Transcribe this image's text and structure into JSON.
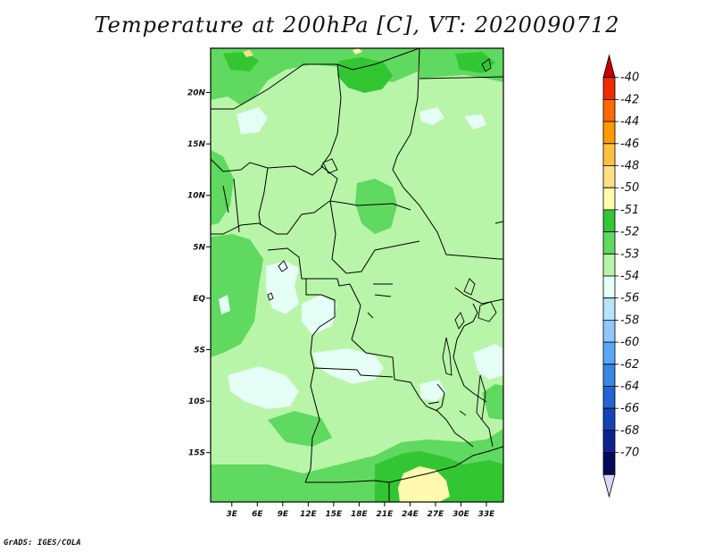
{
  "title": "Temperature at 200hPa [C], VT: 2020090712",
  "credit": "GrADS: IGES/COLA",
  "map": {
    "lat_labels": [
      {
        "label": "20N",
        "lat": 20
      },
      {
        "label": "15N",
        "lat": 15
      },
      {
        "label": "10N",
        "lat": 10
      },
      {
        "label": "5N",
        "lat": 5
      },
      {
        "label": "EQ",
        "lat": 0
      },
      {
        "label": "5S",
        "lat": -5
      },
      {
        "label": "10S",
        "lat": -10
      },
      {
        "label": "15S",
        "lat": -15
      }
    ],
    "lon_labels": [
      {
        "label": "3E",
        "lon": 3
      },
      {
        "label": "6E",
        "lon": 6
      },
      {
        "label": "9E",
        "lon": 9
      },
      {
        "label": "12E",
        "lon": 12
      },
      {
        "label": "15E",
        "lon": 15
      },
      {
        "label": "18E",
        "lon": 18
      },
      {
        "label": "21E",
        "lon": 21
      },
      {
        "label": "24E",
        "lon": 24
      },
      {
        "label": "27E",
        "lon": 27
      },
      {
        "label": "30E",
        "lon": 30
      },
      {
        "label": "33E",
        "lon": 33
      }
    ],
    "lon_range": [
      0.5,
      35
    ],
    "lat_range": [
      -19.8,
      24.3
    ]
  },
  "colorbar": {
    "labels": [
      "-40",
      "-42",
      "-44",
      "-46",
      "-48",
      "-50",
      "-51",
      "-52",
      "-53",
      "-54",
      "-56",
      "-58",
      "-60",
      "-62",
      "-64",
      "-66",
      "-68",
      "-70"
    ],
    "colors": [
      "#c80000",
      "#ee2c00",
      "#ff6a00",
      "#ff9a00",
      "#ffc040",
      "#ffe080",
      "#fffab0",
      "#33c633",
      "#5fd95f",
      "#b8f5a8",
      "#e6fff6",
      "#b8e3ff",
      "#8ec8ff",
      "#5aa8f5",
      "#3a86e6",
      "#2264d4",
      "#1444b4",
      "#0c248e",
      "#040a5a",
      "#d8d8f8"
    ]
  },
  "colors": {
    "lvl_52": "#33c633",
    "lvl_53": "#5fd95f",
    "lvl_54": "#b8f5a8",
    "lvl_56": "#e6fff6",
    "lvl_50": "#fffab0",
    "lvl_48": "#ffe080"
  }
}
